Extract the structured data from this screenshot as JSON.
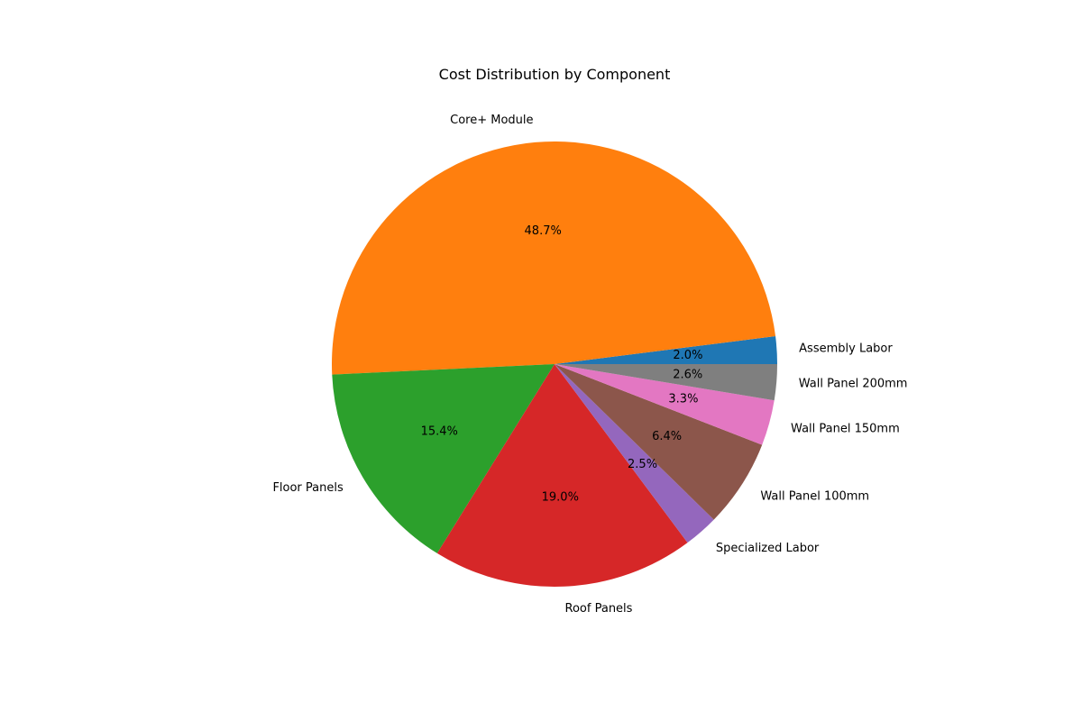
{
  "chart_data": {
    "type": "pie",
    "title": "Cost Distribution by Component",
    "start_angle_deg": 0,
    "direction": "counterclockwise",
    "slices": [
      {
        "label": "Assembly Labor",
        "value": 2.0,
        "pct_label": "2.0%",
        "color": "#1f77b4"
      },
      {
        "label": "Core+ Module",
        "value": 48.7,
        "pct_label": "48.7%",
        "color": "#ff7f0e"
      },
      {
        "label": "Floor Panels",
        "value": 15.4,
        "pct_label": "15.4%",
        "color": "#2ca02c"
      },
      {
        "label": "Roof Panels",
        "value": 19.0,
        "pct_label": "19.0%",
        "color": "#d62728"
      },
      {
        "label": "Specialized Labor",
        "value": 2.5,
        "pct_label": "2.5%",
        "color": "#9467bd"
      },
      {
        "label": "Wall Panel 100mm",
        "value": 6.4,
        "pct_label": "6.4%",
        "color": "#8c564b"
      },
      {
        "label": "Wall Panel 150mm",
        "value": 3.3,
        "pct_label": "3.3%",
        "color": "#e377c2"
      },
      {
        "label": "Wall Panel 200mm",
        "value": 2.6,
        "pct_label": "2.6%",
        "color": "#7f7f7f"
      }
    ]
  }
}
